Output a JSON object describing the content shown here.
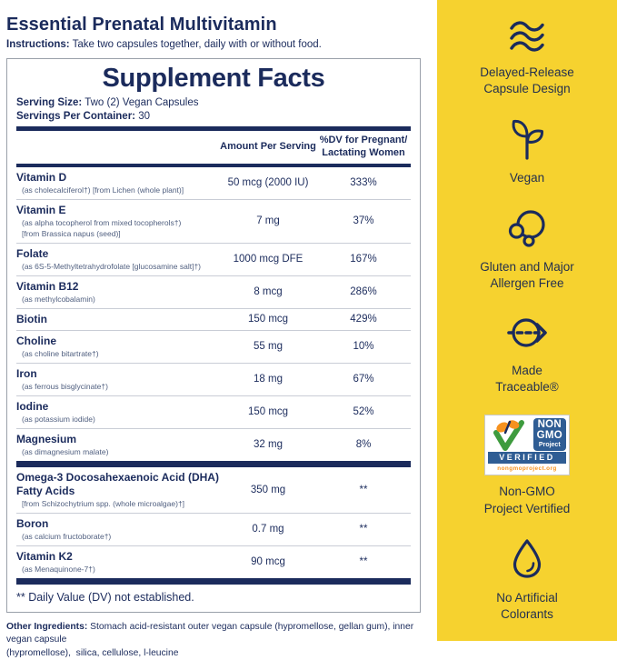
{
  "page": {
    "title": "Essential Prenatal Multivitamin",
    "instructions_label": "Instructions:",
    "instructions_text": "Take two capsules together, daily with or without food."
  },
  "supplement_facts": {
    "title": "Supplement Facts",
    "serving_size_label": "Serving Size:",
    "serving_size_value": "Two (2) Vegan Capsules",
    "servings_label": "Servings Per Container:",
    "servings_value": "30",
    "col_amount": "Amount Per Serving",
    "col_dv": "%DV for Pregnant/ Lactating Women",
    "rows": [
      {
        "name": "Vitamin D",
        "subs": [
          "(as cholecalciferol†) [from Lichen (whole plant)]"
        ],
        "amount": "50 mcg (2000 IU)",
        "dv": "333%"
      },
      {
        "name": "Vitamin E",
        "subs": [
          "(as alpha tocopherol from mixed tocopherols†)",
          "[from Brassica napus (seed)]"
        ],
        "amount": "7 mg",
        "dv": "37%"
      },
      {
        "name": "Folate",
        "subs": [
          "(as 6S-5-Methyltetrahydrofolate [glucosamine salt]†)"
        ],
        "amount": "1000 mcg DFE",
        "dv": "167%"
      },
      {
        "name": "Vitamin B12",
        "subs": [
          "(as methylcobalamin)"
        ],
        "amount": "8 mcg",
        "dv": "286%"
      },
      {
        "name": "Biotin",
        "subs": [],
        "amount": "150 mcg",
        "dv": "429%"
      },
      {
        "name": "Choline",
        "subs": [
          "(as choline bitartrate†)"
        ],
        "amount": "55 mg",
        "dv": "10%"
      },
      {
        "name": "Iron",
        "subs": [
          "(as ferrous bisglycinate†)"
        ],
        "amount": "18 mg",
        "dv": "67%"
      },
      {
        "name": "Iodine",
        "subs": [
          "(as potassium iodide)"
        ],
        "amount": "150 mcg",
        "dv": "52%"
      },
      {
        "name": "Magnesium",
        "subs": [
          "(as dimagnesium malate)"
        ],
        "amount": "32 mg",
        "dv": "8%",
        "thick_bar_after": true
      },
      {
        "name": "Omega-3 Docosahexaenoic Acid (DHA) Fatty Acids",
        "subs": [
          "[from Schizochytrium spp. (whole microalgae)†]"
        ],
        "amount": "350 mg",
        "dv": "**"
      },
      {
        "name": "Boron",
        "subs": [
          "(as calcium fructoborate†)"
        ],
        "amount": "0.7 mg",
        "dv": "**"
      },
      {
        "name": "Vitamin K2",
        "subs": [
          "(as Menaquinone-7†)"
        ],
        "amount": "90 mcg",
        "dv": "**",
        "thick_bar_after": true
      }
    ],
    "footnote": "** Daily Value (DV) not established."
  },
  "other_ingredients": {
    "label": "Other Ingredients:",
    "text": "Stomach acid-resistant outer vegan capsule (hypromellose, gellan gum), inner vegan capsule\n(hypromellose),  silica, cellulose, l-leucine"
  },
  "sidebar": {
    "items": [
      {
        "icon": "waves-icon",
        "label": "Delayed-Release\nCapsule Design"
      },
      {
        "icon": "sprout-icon",
        "label": "Vegan"
      },
      {
        "icon": "allergen-free-circles-icon",
        "label": "Gluten and Major\nAllergen Free"
      },
      {
        "icon": "traceable-dashed-arrow-icon",
        "label": "Made\nTraceable®"
      },
      {
        "icon": "non-gmo-project-verified-badge",
        "label": "Non-GMO\nProject Vertified"
      },
      {
        "icon": "water-drop-icon",
        "label": "No Artificial\nColorants"
      }
    ],
    "badge": {
      "l1": "NON",
      "l2": "GMO",
      "l3": "Project",
      "verified": "VERIFIED",
      "url": "nongmoproject.org"
    }
  },
  "colors": {
    "navy": "#1B2B5C",
    "sidebar_yellow": "#F6D22F",
    "sub_text_gray": "#516080",
    "badge_blue": "#2F5D94",
    "badge_orange": "#F6921E",
    "badge_green": "#3E9B3E"
  }
}
